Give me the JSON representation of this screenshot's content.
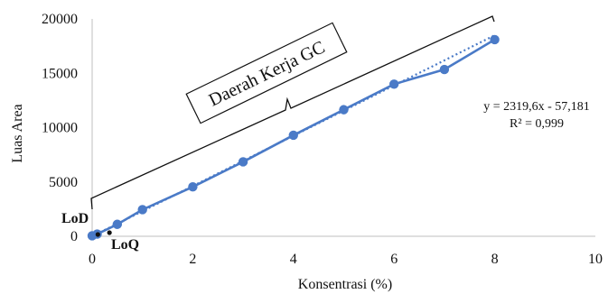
{
  "colors": {
    "series": "#4a7ac7",
    "trendline": "#4a7ac7",
    "axis": "#bfbfbf",
    "text": "#111111"
  },
  "chart_data": {
    "type": "scatter",
    "xlabel": "Konsentrasi (%)",
    "ylabel": "Luas Area",
    "xlim": [
      0,
      10
    ],
    "ylim": [
      0,
      20000
    ],
    "xticks": [
      0,
      2,
      4,
      6,
      8,
      10
    ],
    "yticks": [
      0,
      5000,
      10000,
      15000,
      20000
    ],
    "grid": false,
    "series": [
      {
        "x": [
          0,
          0.1,
          0.5,
          1,
          2,
          3,
          4,
          5,
          6,
          7,
          8
        ],
        "y": [
          50,
          200,
          1100,
          2450,
          4550,
          6850,
          9300,
          11650,
          14000,
          15350,
          18100
        ]
      }
    ],
    "trendline": {
      "type": "linear",
      "equation": "y = 2319,6x  - 57,181",
      "r2": "R² = 0,999",
      "slope": 2319.6,
      "intercept": -57.181
    },
    "annotations": {
      "bracket_label": "Daerah Kerja GC",
      "lod_label": "LoD",
      "loq_label": "LoQ",
      "lod_point": {
        "x": 0.06,
        "y": 0
      },
      "loq_point": {
        "x": 0.29,
        "y": 0
      }
    }
  }
}
